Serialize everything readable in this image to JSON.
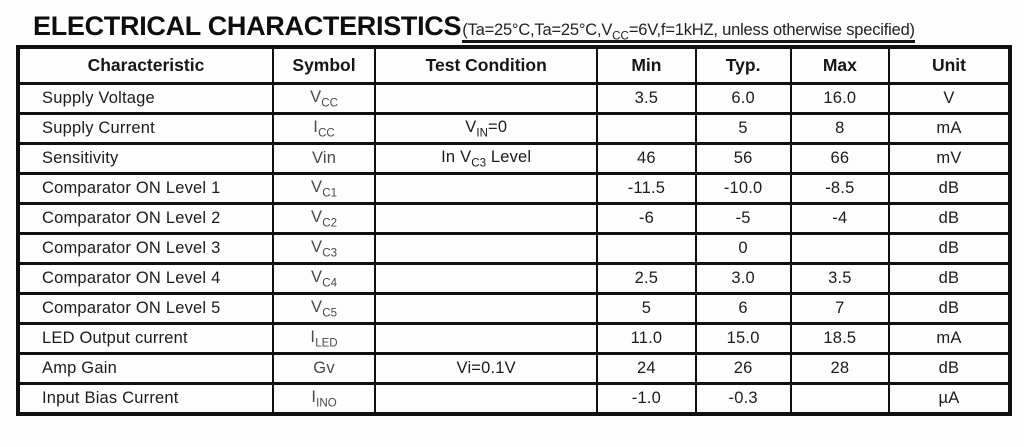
{
  "title": {
    "text": "ELECTRICAL CHARACTERISTICS",
    "condition": "(Ta=25°C,Ta=25°C,V~CC~=6V,f=1kHZ, unless otherwise specified)"
  },
  "table": {
    "columns": [
      "Characteristic",
      "Symbol",
      "Test Condition",
      "Min",
      "Typ.",
      "Max",
      "Unit"
    ],
    "column_keys": [
      "characteristic",
      "symbol",
      "test-condition",
      "min",
      "typ",
      "max",
      "unit"
    ],
    "column_widths_pct": [
      25.7,
      10.3,
      22.4,
      9.9,
      9.6,
      9.9,
      12.2
    ],
    "rows": [
      [
        "Supply Voltage",
        "V~CC~",
        "",
        "3.5",
        "6.0",
        "16.0",
        "V"
      ],
      [
        "Supply Current",
        "I~CC~",
        "V~IN~=0",
        "",
        "5",
        "8",
        "mA"
      ],
      [
        "Sensitivity",
        "Vin",
        "In V~C3~ Level",
        "46",
        "56",
        "66",
        "mV"
      ],
      [
        "Comparator ON Level 1",
        "V~C1~",
        "",
        "-11.5",
        "-10.0",
        "-8.5",
        "dB"
      ],
      [
        "Comparator ON Level 2",
        "V~C2~",
        "",
        "-6",
        "-5",
        "-4",
        "dB"
      ],
      [
        "Comparator ON Level 3",
        "V~C3~",
        "",
        "",
        "0",
        "",
        "dB"
      ],
      [
        "Comparator ON Level 4",
        "V~C4~",
        "",
        "2.5",
        "3.0",
        "3.5",
        "dB"
      ],
      [
        "Comparator ON Level 5",
        "V~C5~",
        "",
        "5",
        "6",
        "7",
        "dB"
      ],
      [
        "LED Output current",
        "I~LED~",
        "",
        "11.0",
        "15.0",
        "18.5",
        "mA"
      ],
      [
        "Amp Gain",
        "Gv",
        "Vi=0.1V",
        "24",
        "26",
        "28",
        "dB"
      ],
      [
        "Input Bias Current",
        "I~INO~",
        "",
        "-1.0",
        "-0.3",
        "",
        "µA"
      ]
    ]
  },
  "colors": {
    "text": "#1c1c1c",
    "symbol": "#4a4a4a",
    "border": "#101010",
    "background": "#fdfdfd"
  }
}
